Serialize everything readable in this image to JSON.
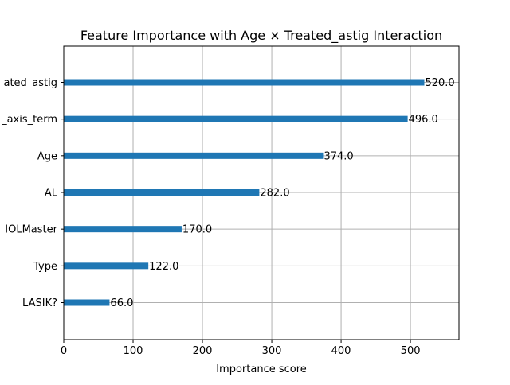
{
  "chart_data": {
    "type": "bar",
    "orientation": "horizontal",
    "title": "Feature Importance with Age × Treated_astig Interaction",
    "xlabel": "Importance score",
    "ylabel": "",
    "xlim": [
      0,
      570
    ],
    "xticks": [
      0,
      100,
      200,
      300,
      400,
      500
    ],
    "xtick_labels": [
      "0",
      "100",
      "200",
      "300",
      "400",
      "500"
    ],
    "grid": true,
    "categories": [
      "LASIK?",
      "Type",
      "IOLMaster",
      "AL",
      "Age",
      "axis_term",
      "Treated_astig"
    ],
    "category_labels_visible": [
      "LASIK?",
      "Type",
      "IOLMaster",
      "AL",
      "Age",
      "_axis_term",
      "ated_astig"
    ],
    "values": [
      66,
      122,
      170,
      282,
      374,
      496,
      520
    ],
    "value_labels": [
      "66.0",
      "122.0",
      "170.0",
      "282.0",
      "374.0",
      "496.0",
      "520.0"
    ],
    "bar_color": "#1f77b4",
    "grid_color": "#b0b0b0"
  }
}
